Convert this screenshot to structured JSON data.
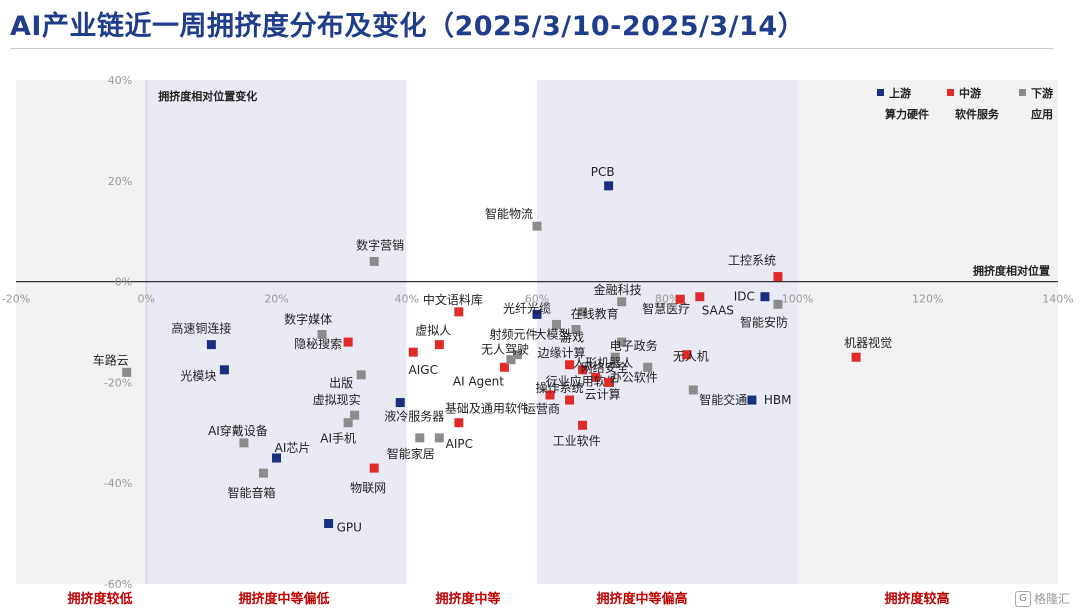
{
  "title": "AI产业链近一周拥挤度分布及变化（2025/3/10-2025/3/14）",
  "watermark": "格隆汇",
  "chart_data": {
    "type": "scatter",
    "xlabel": "拥挤度相对位置",
    "ylabel": "拥挤度相对位置变化",
    "xlim": [
      -20,
      140
    ],
    "ylim": [
      -60,
      40
    ],
    "x_ticks": [
      "-20%",
      "0%",
      "20%",
      "40%",
      "60%",
      "80%",
      "100%",
      "120%",
      "140%"
    ],
    "y_ticks": [
      "40%",
      "20%",
      "0%",
      "-20%",
      "-40%",
      "-60%"
    ],
    "zones": [
      {
        "label": "拥挤度较低",
        "from": -20,
        "to": 0,
        "color": "#f2f2f2"
      },
      {
        "label": "拥挤度中等偏低",
        "from": 0,
        "to": 40,
        "color": "#e9eaf4"
      },
      {
        "label": "拥挤度中等",
        "from": 40,
        "to": 60,
        "color": "#ffffff"
      },
      {
        "label": "拥挤度中等偏高",
        "from": 60,
        "to": 100,
        "color": "#e9eaf4"
      },
      {
        "label": "拥挤度较高",
        "from": 100,
        "to": 140,
        "color": "#f2f2f2"
      }
    ],
    "legend": [
      {
        "name": "上游",
        "sub": "算力硬件",
        "color": "#1a2f80"
      },
      {
        "name": "中游",
        "sub": "软件服务",
        "color": "#e02b2b"
      },
      {
        "name": "下游",
        "sub": "应用",
        "color": "#8c8c8c"
      }
    ],
    "legend_position": "top-right",
    "series": [
      {
        "name": "上游",
        "color": "#1a2f80",
        "points": [
          {
            "label": "PCB",
            "x": 71,
            "y": 19
          },
          {
            "label": "IDC",
            "x": 95,
            "y": -3
          },
          {
            "label": "HBM",
            "x": 93,
            "y": -23.5
          },
          {
            "label": "光纤光缆",
            "x": 60,
            "y": -6.5
          },
          {
            "label": "高速铜连接",
            "x": 10,
            "y": -12.5
          },
          {
            "label": "光模块",
            "x": 12,
            "y": -17.5
          },
          {
            "label": "液冷服务器",
            "x": 39,
            "y": -24
          },
          {
            "label": "AI芯片",
            "x": 20,
            "y": -35
          },
          {
            "label": "GPU",
            "x": 28,
            "y": -48
          }
        ]
      },
      {
        "name": "中游",
        "color": "#e02b2b",
        "points": [
          {
            "label": "工控系统",
            "x": 97,
            "y": 1
          },
          {
            "label": "SAAS",
            "x": 85,
            "y": -3
          },
          {
            "label": "中文语料库",
            "x": 48,
            "y": -6
          },
          {
            "label": "虚拟人",
            "x": 45,
            "y": -12.5
          },
          {
            "label": "AIGC",
            "x": 41,
            "y": -14
          },
          {
            "label": "隐秘搜索",
            "x": 31,
            "y": -12
          },
          {
            "label": "AI Agent",
            "x": 55,
            "y": -17
          },
          {
            "label": "边缘计算",
            "x": 65,
            "y": -16.5
          },
          {
            "label": "网络安全",
            "x": 67,
            "y": -17.5
          },
          {
            "label": "行业应用软件",
            "x": 69,
            "y": -19
          },
          {
            "label": "无人机",
            "x": 83,
            "y": -14.5
          },
          {
            "label": "云计算",
            "x": 71,
            "y": -20
          },
          {
            "label": "基础及通用软件",
            "x": 48,
            "y": -28
          },
          {
            "label": "运营商",
            "x": 62,
            "y": -22.5
          },
          {
            "label": "操作系统",
            "x": 65,
            "y": -23.5
          },
          {
            "label": "工业软件",
            "x": 67,
            "y": -28.5
          },
          {
            "label": "机器视觉",
            "x": 109,
            "y": -15
          },
          {
            "label": "物联网",
            "x": 35,
            "y": -37
          },
          {
            "label": "智慧医疗",
            "x": 82,
            "y": -3.5
          }
        ]
      },
      {
        "name": "下游",
        "color": "#8c8c8c",
        "points": [
          {
            "label": "智能物流",
            "x": 60,
            "y": 11
          },
          {
            "label": "数字营销",
            "x": 35,
            "y": 4
          },
          {
            "label": "金融科技",
            "x": 73,
            "y": -4
          },
          {
            "label": "智能安防",
            "x": 97,
            "y": -4.5
          },
          {
            "label": "在线教育",
            "x": 67,
            "y": -6
          },
          {
            "label": "大模型",
            "x": 63,
            "y": -8.5
          },
          {
            "label": "游戏",
            "x": 66,
            "y": -9.5
          },
          {
            "label": "电子政务",
            "x": 73,
            "y": -12
          },
          {
            "label": "人形机器人",
            "x": 72,
            "y": -15
          },
          {
            "label": "射频元件",
            "x": 57,
            "y": -14.5
          },
          {
            "label": "无人驾驶",
            "x": 56,
            "y": -15.5
          },
          {
            "label": "数字媒体",
            "x": 27,
            "y": -10.5
          },
          {
            "label": "车路云",
            "x": -3,
            "y": -18
          },
          {
            "label": "出版",
            "x": 33,
            "y": -18.5
          },
          {
            "label": "虚拟现实",
            "x": 32,
            "y": -26.5
          },
          {
            "label": "AI手机",
            "x": 31,
            "y": -28
          },
          {
            "label": "AI穿戴设备",
            "x": 15,
            "y": -32
          },
          {
            "label": "智能音箱",
            "x": 18,
            "y": -38
          },
          {
            "label": "AIPC",
            "x": 45,
            "y": -31
          },
          {
            "label": "智能家居",
            "x": 42,
            "y": -31
          },
          {
            "label": "办公软件",
            "x": 77,
            "y": -17
          },
          {
            "label": "智能交通",
            "x": 84,
            "y": -21.5
          }
        ]
      }
    ]
  }
}
